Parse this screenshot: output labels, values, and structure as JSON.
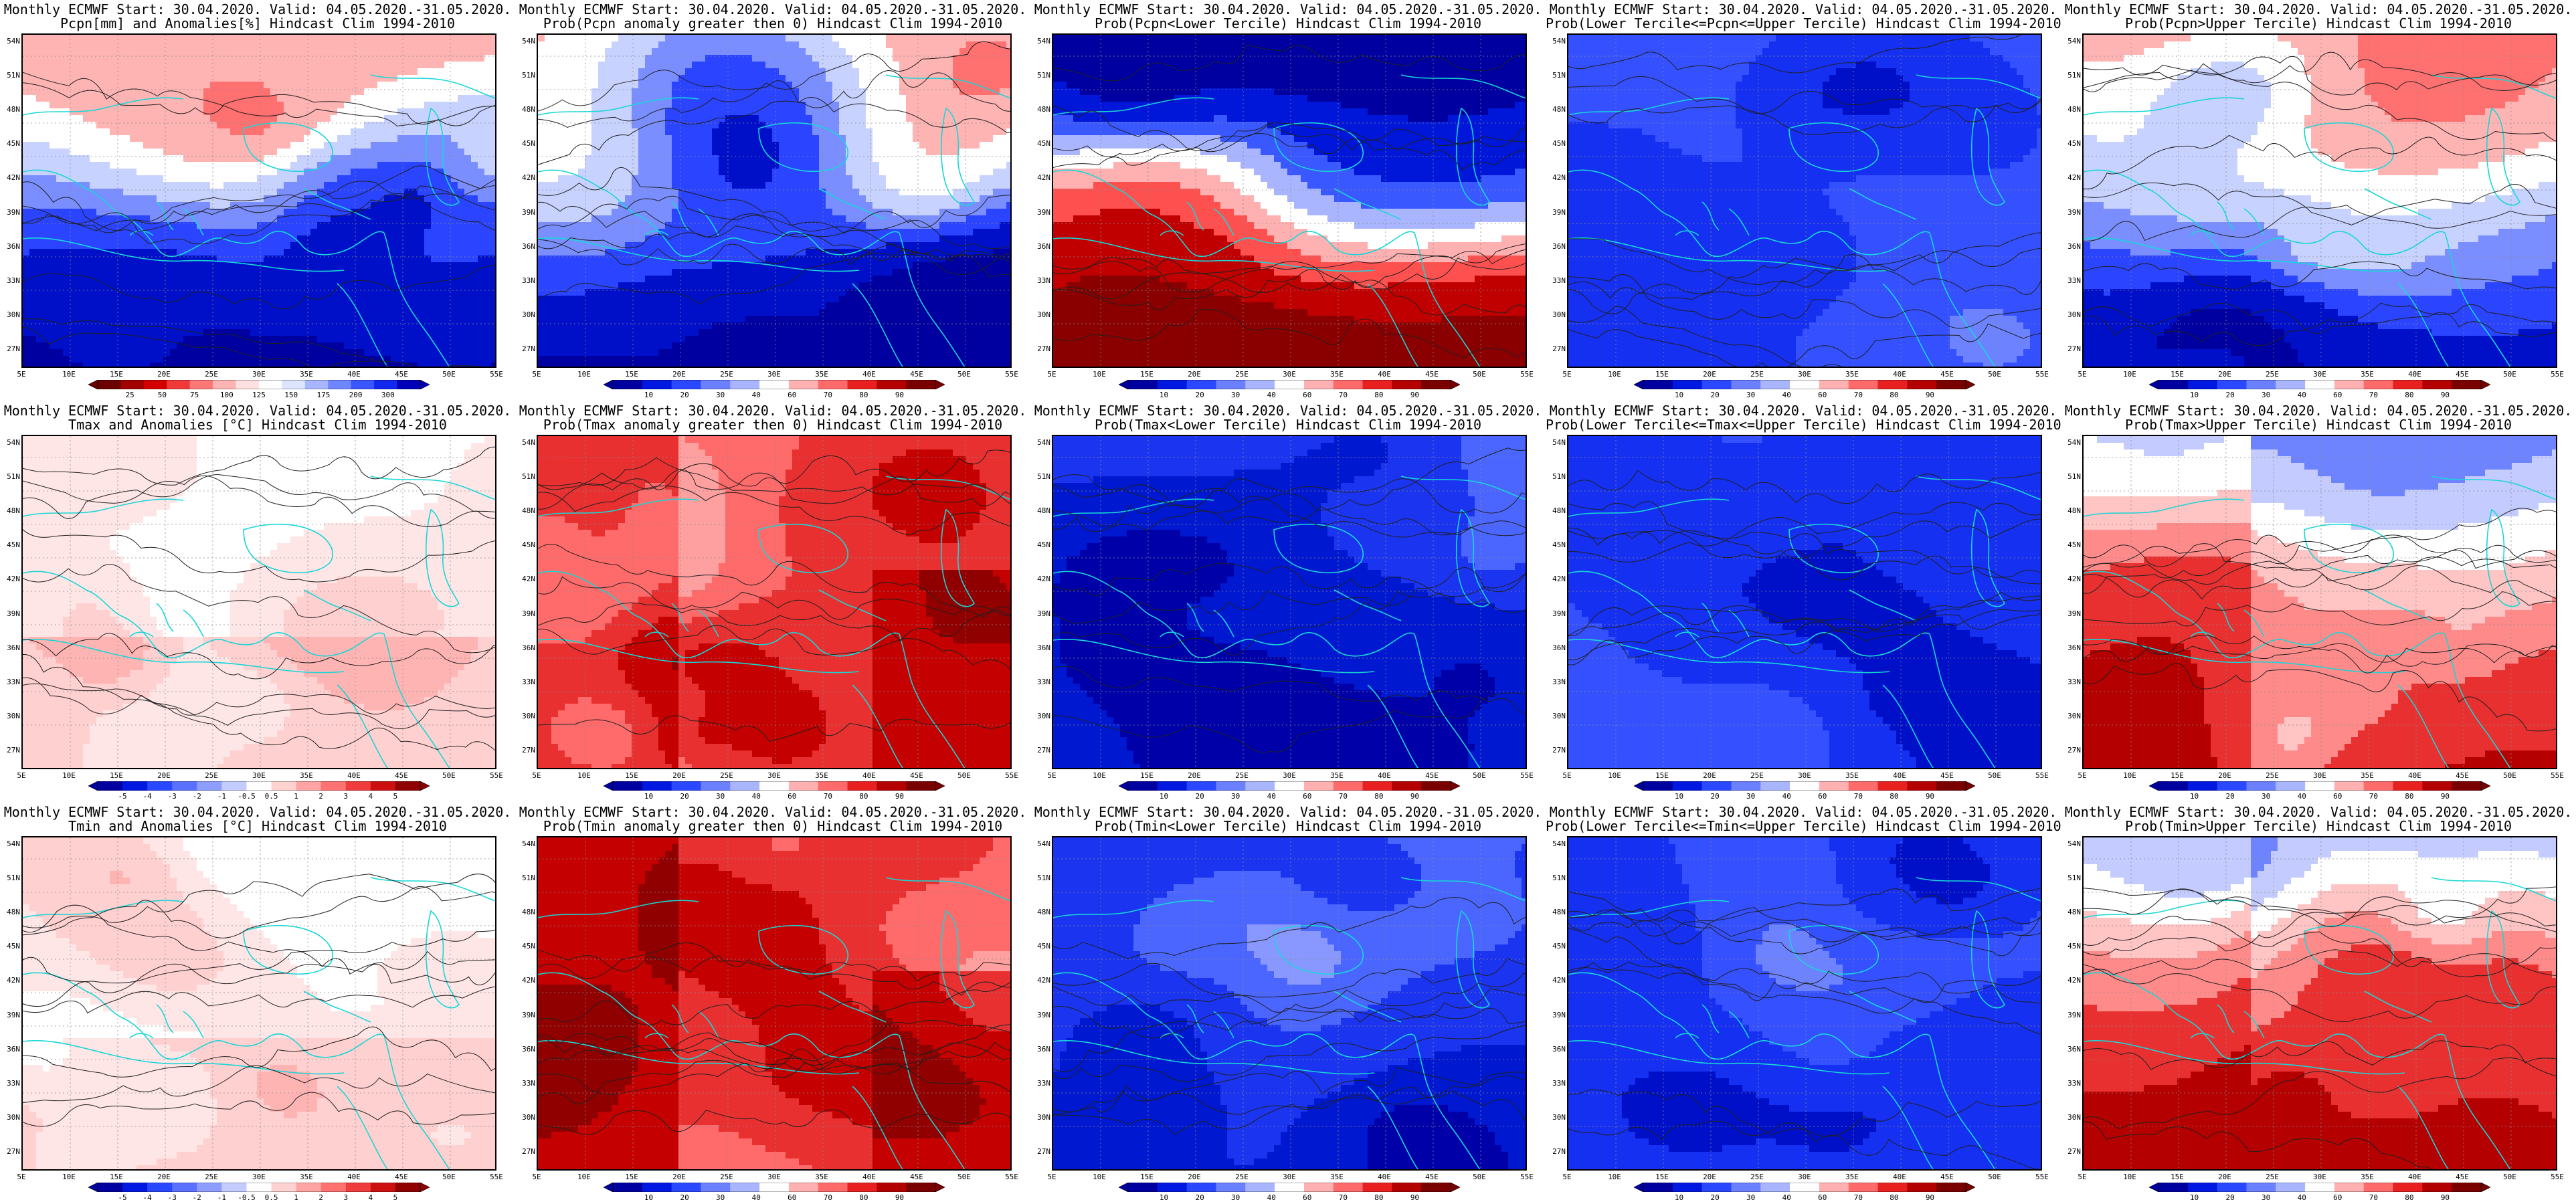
{
  "title_line1": "Monthly ECMWF Start: 30.04.2020. Valid: 04.05.2020.-31.05.2020.",
  "lat_labels": [
    "54N",
    "51N",
    "48N",
    "45N",
    "42N",
    "39N",
    "36N",
    "33N",
    "30N",
    "27N"
  ],
  "lon_labels": [
    "5E",
    "10E",
    "15E",
    "20E",
    "25E",
    "30E",
    "35E",
    "40E",
    "45E",
    "50E",
    "55E"
  ],
  "colorbars": {
    "pcpn": {
      "labels": [
        "25",
        "50",
        "75",
        "100",
        "125",
        "150",
        "175",
        "200",
        "300"
      ],
      "colors": [
        "#6a0000",
        "#a20000",
        "#d40000",
        "#f03a3a",
        "#ff7878",
        "#ffb4b4",
        "#ffe0e0",
        "#ffffff",
        "#dce4ff",
        "#a6b6ff",
        "#6e86ff",
        "#3b55ff",
        "#1027ee",
        "#0000b8"
      ]
    },
    "prob": {
      "labels": [
        "10",
        "20",
        "30",
        "40",
        "60",
        "70",
        "80",
        "90"
      ],
      "colors": [
        "#0000a0",
        "#0018e0",
        "#2a48ff",
        "#6a80ff",
        "#a9b6ff",
        "#ffffff",
        "#ffb0b0",
        "#ff6a6a",
        "#e82020",
        "#b40000",
        "#7a0000"
      ]
    },
    "temp": {
      "labels": [
        "-5",
        "-4",
        "-3",
        "-2",
        "-1",
        "-0.5",
        "0.5",
        "1",
        "2",
        "3",
        "4",
        "5"
      ],
      "colors": [
        "#0000a0",
        "#0018e0",
        "#2a48ff",
        "#5a70ff",
        "#8e9eff",
        "#c4ccff",
        "#ffffff",
        "#ffd2d2",
        "#ffa4a4",
        "#ff7272",
        "#f03c3c",
        "#cc1010",
        "#900000"
      ]
    }
  },
  "panels": [
    {
      "title2": "Pcpn[mm] and Anomalies[%] Hindcast Clim 1994-2010",
      "cb": "pcpn",
      "style": "pcpn"
    },
    {
      "title2": "Prob(Pcpn anomaly greater then 0) Hindcast Clim 1994-2010",
      "cb": "prob",
      "style": "pcpn"
    },
    {
      "title2": "Prob(Pcpn<Lower Tercile) Hindcast Clim 1994-2010",
      "cb": "prob",
      "style": "pcpnLow"
    },
    {
      "title2": "Prob(Lower Tercile<=Pcpn<=Upper Tercile) Hindcast Clim 1994-2010",
      "cb": "prob",
      "style": "mid"
    },
    {
      "title2": "Prob(Pcpn>Upper Tercile) Hindcast Clim 1994-2010",
      "cb": "prob",
      "style": "pcpn"
    },
    {
      "title2": "Tmax and Anomalies [°C] Hindcast Clim 1994-2010",
      "cb": "temp",
      "style": "warmLight"
    },
    {
      "title2": "Prob(Tmax anomaly greater then 0) Hindcast Clim 1994-2010",
      "cb": "prob",
      "style": "warm"
    },
    {
      "title2": "Prob(Tmax<Lower Tercile) Hindcast Clim 1994-2010",
      "cb": "prob",
      "style": "cold"
    },
    {
      "title2": "Prob(Lower Tercile<=Tmax<=Upper Tercile) Hindcast Clim 1994-2010",
      "cb": "prob",
      "style": "mid"
    },
    {
      "title2": "Prob(Tmax>Upper Tercile) Hindcast Clim 1994-2010",
      "cb": "prob",
      "style": "warmMix"
    },
    {
      "title2": "Tmin and Anomalies [°C] Hindcast Clim 1994-2010",
      "cb": "temp",
      "style": "warmLight"
    },
    {
      "title2": "Prob(Tmin anomaly greater then 0) Hindcast Clim 1994-2010",
      "cb": "prob",
      "style": "warm"
    },
    {
      "title2": "Prob(Tmin<Lower Tercile) Hindcast Clim 1994-2010",
      "cb": "prob",
      "style": "cold"
    },
    {
      "title2": "Prob(Lower Tercile<=Tmin<=Upper Tercile) Hindcast Clim 1994-2010",
      "cb": "prob",
      "style": "mid"
    },
    {
      "title2": "Prob(Tmin>Upper Tercile) Hindcast Clim 1994-2010",
      "cb": "prob",
      "style": "warmMix"
    }
  ]
}
